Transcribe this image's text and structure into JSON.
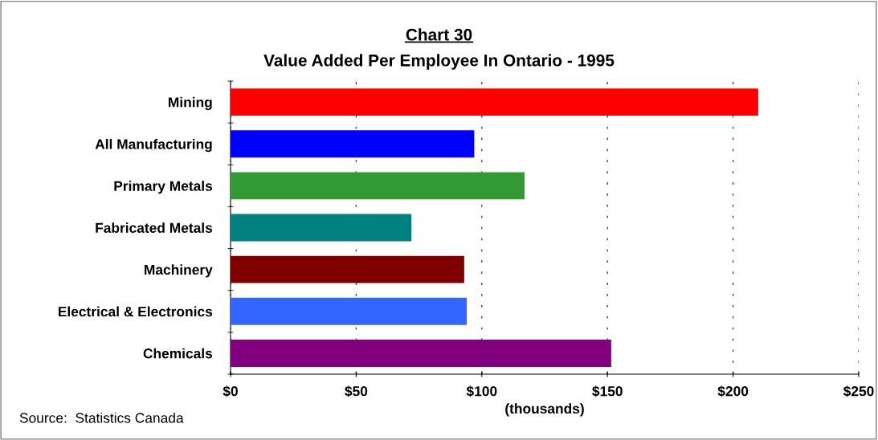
{
  "chart_data": {
    "type": "bar",
    "orientation": "horizontal",
    "title": "Chart 30",
    "subtitle": "Value Added Per Employee In Ontario - 1995",
    "xlabel": "(thousands)",
    "categories": [
      "Mining",
      "All Manufacturing",
      "Primary Metals",
      "Fabricated Metals",
      "Machinery",
      "Electrical & Electronics",
      "Chemicals"
    ],
    "values": [
      210,
      97,
      117,
      72,
      93,
      94,
      151.5
    ],
    "colors": [
      "#ff0000",
      "#0000ff",
      "#339933",
      "#008080",
      "#800000",
      "#3366ff",
      "#800080"
    ],
    "xlim": [
      0,
      250
    ],
    "xticks": [
      {
        "value": 0,
        "label": "$0"
      },
      {
        "value": 50,
        "label": "$50"
      },
      {
        "value": 100,
        "label": "$100"
      },
      {
        "value": 150,
        "label": "$150"
      },
      {
        "value": 200,
        "label": "$200"
      },
      {
        "value": 250,
        "label": "$250"
      }
    ],
    "grid": "x",
    "annotations": [
      "Source:  Statistics Canada"
    ]
  }
}
